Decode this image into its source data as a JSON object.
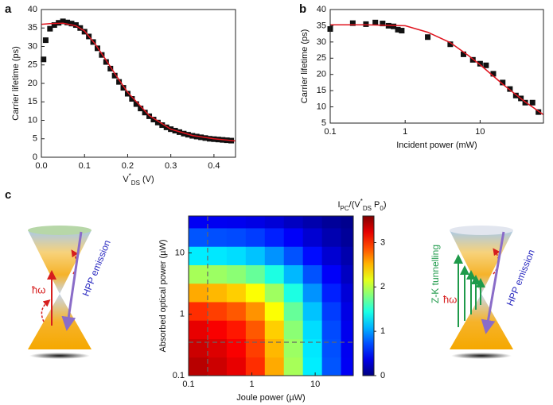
{
  "chart_data": [
    {
      "type": "scatter",
      "panel": "a",
      "xlim": [
        0,
        0.45
      ],
      "ylim": [
        0,
        40
      ],
      "xticks": [
        {
          "value": 0,
          "label": "0.0"
        },
        0.1,
        0.2,
        0.3,
        0.4
      ],
      "yticks": [
        0,
        5,
        10,
        15,
        20,
        25,
        30,
        35,
        40
      ],
      "xlabel": [
        {
          "text": "V"
        },
        {
          "text": "*",
          "sup": true
        },
        {
          "text": "DS",
          "sub": true
        },
        {
          "text": " (V)"
        }
      ],
      "ylabel": "Carrier lifetime (ps)",
      "points": {
        "color": "#111111",
        "x": [
          0.005,
          0.01,
          0.02,
          0.03,
          0.04,
          0.05,
          0.06,
          0.07,
          0.08,
          0.09,
          0.1,
          0.11,
          0.12,
          0.13,
          0.14,
          0.15,
          0.16,
          0.17,
          0.18,
          0.19,
          0.2,
          0.21,
          0.22,
          0.23,
          0.24,
          0.25,
          0.26,
          0.27,
          0.28,
          0.29,
          0.3,
          0.31,
          0.32,
          0.33,
          0.34,
          0.35,
          0.36,
          0.37,
          0.38,
          0.39,
          0.4,
          0.41,
          0.42,
          0.43,
          0.44
        ],
        "y": [
          26.5,
          31.7,
          34.8,
          35.8,
          36.4,
          36.8,
          36.5,
          36.2,
          35.8,
          35,
          34,
          32.7,
          31.2,
          29.5,
          27.7,
          25.8,
          24,
          22.1,
          20.4,
          18.8,
          17.2,
          15.8,
          14.4,
          13.2,
          12.1,
          11.1,
          10.2,
          9.4,
          8.7,
          8.1,
          7.6,
          7.2,
          6.8,
          6.4,
          6.1,
          5.8,
          5.6,
          5.4,
          5.2,
          5.0,
          4.9,
          4.8,
          4.7,
          4.6,
          4.5
        ]
      },
      "fit": {
        "color": "#e0141e",
        "x": [
          0,
          0.02,
          0.05,
          0.08,
          0.1,
          0.125,
          0.15,
          0.175,
          0.2,
          0.25,
          0.3,
          0.35,
          0.4,
          0.45
        ],
        "y": [
          36,
          36.2,
          36.3,
          35.6,
          34.2,
          30.6,
          26.3,
          21.8,
          17.6,
          11.3,
          7.6,
          5.9,
          5.0,
          4.4
        ]
      }
    },
    {
      "type": "scatter",
      "panel": "b",
      "xlog": true,
      "xlim": [
        0.1,
        70
      ],
      "ylim": [
        5,
        40
      ],
      "xticks": [
        0.1,
        1,
        10
      ],
      "yticks": [
        5,
        10,
        15,
        20,
        25,
        30,
        35,
        40
      ],
      "xlabel": "Incident power (mW)",
      "ylabel": "Carrier lifetime (ps)",
      "points": {
        "color": "#111111",
        "x": [
          0.1,
          0.2,
          0.3,
          0.4,
          0.5,
          0.6,
          0.7,
          0.8,
          0.9,
          2,
          4,
          6,
          8,
          10,
          12,
          15,
          20,
          25,
          30,
          35,
          40,
          50,
          60
        ],
        "y": [
          34,
          35.8,
          35.5,
          36,
          35.7,
          35,
          34.8,
          33.8,
          33.5,
          31.5,
          29.3,
          26.2,
          24.5,
          23.3,
          22.8,
          20.2,
          17.5,
          15.5,
          13.5,
          12.6,
          11.3,
          11.3,
          8.4
        ]
      },
      "fit": {
        "color": "#e0141e",
        "x": [
          0.1,
          0.3,
          1,
          2,
          4,
          7,
          10,
          20,
          40,
          70
        ],
        "y": [
          35.3,
          35.3,
          35,
          33,
          29.8,
          25.8,
          23,
          17,
          11.5,
          7.6
        ]
      }
    },
    {
      "type": "heatmap",
      "panel": "c",
      "xlog": true,
      "ylog": true,
      "xlim": [
        0.1,
        40
      ],
      "ylim": [
        0.1,
        40
      ],
      "xticks": [
        0.1,
        1,
        10
      ],
      "yticks": [
        0.1,
        1,
        10
      ],
      "xlabel": "Joule power (µW)",
      "ylabel": "Absorbed optical power (µW)",
      "x_edges": [
        0.1,
        0.2,
        0.4,
        0.8,
        1.6,
        3.2,
        6.4,
        12.8,
        25.6,
        40
      ],
      "y_edges": [
        0.1,
        0.2,
        0.4,
        0.8,
        1.6,
        3.2,
        6.4,
        12.8,
        25.6,
        40
      ],
      "z": [
        [
          3.4,
          3.33,
          3.23,
          2.99,
          2.55,
          1.94,
          1.29,
          0.75,
          0.41
        ],
        [
          3.33,
          3.27,
          3.17,
          2.93,
          2.5,
          1.9,
          1.27,
          0.73,
          0.4
        ],
        [
          3.23,
          3.17,
          3.07,
          2.84,
          2.42,
          1.84,
          1.23,
          0.71,
          0.39
        ],
        [
          2.99,
          2.93,
          2.84,
          2.63,
          2.24,
          1.71,
          1.14,
          0.66,
          0.36
        ],
        [
          2.55,
          2.5,
          2.42,
          2.24,
          1.91,
          1.45,
          0.97,
          0.56,
          0.31
        ],
        [
          1.94,
          1.9,
          1.84,
          1.71,
          1.45,
          1.1,
          0.74,
          0.43,
          0.23
        ],
        [
          1.29,
          1.27,
          1.23,
          1.14,
          0.97,
          0.74,
          0.49,
          0.29,
          0.16
        ],
        [
          0.75,
          0.73,
          0.71,
          0.66,
          0.56,
          0.43,
          0.29,
          0.17,
          0.09
        ],
        [
          0.41,
          0.4,
          0.39,
          0.36,
          0.31,
          0.23,
          0.16,
          0.09,
          0.05
        ]
      ],
      "dashed_x": 0.2,
      "dashed_y": 0.35,
      "clim": [
        0,
        3.6
      ],
      "cticks": [
        0,
        1,
        2,
        3
      ],
      "clabel": [
        {
          "text": "I"
        },
        {
          "text": "PC",
          "sub": true
        },
        {
          "text": "/(V"
        },
        {
          "text": "*",
          "sup": true
        },
        {
          "text": "DS",
          "sub": true
        },
        {
          "text": " P"
        },
        {
          "text": "0",
          "sub": true
        },
        {
          "text": ")"
        }
      ]
    }
  ],
  "diagrams": {
    "left": {
      "photon": "ħω",
      "emission": "HPP emission"
    },
    "right": {
      "tunnelling": "Z-K tunnelling",
      "photon": "ħω",
      "emission": "HPP emission"
    }
  }
}
